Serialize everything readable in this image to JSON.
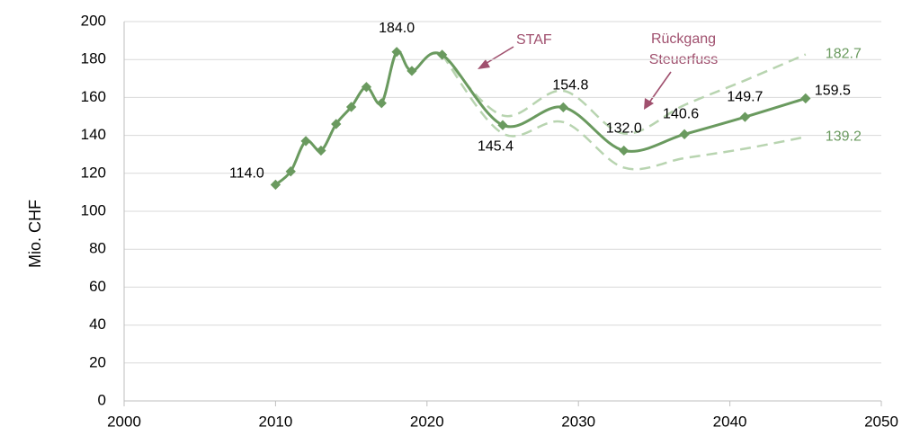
{
  "chart_data": {
    "type": "line",
    "y_label": "Mio. CHF",
    "x": [
      2010,
      2011,
      2012,
      2013,
      2014,
      2015,
      2016,
      2017,
      2018,
      2019,
      2021,
      2025,
      2029,
      2033,
      2037,
      2041,
      2045
    ],
    "series": [
      {
        "color": "#6a9a5f",
        "style": "solid",
        "markers": true,
        "values": [
          114,
          121,
          137,
          132,
          146,
          155,
          165.5,
          157,
          184,
          174,
          182.5,
          145.4,
          154.8,
          132,
          140.6,
          149.7,
          159.5
        ],
        "value_labels": [
          "114.0",
          null,
          null,
          null,
          null,
          null,
          null,
          null,
          "184.0",
          null,
          null,
          "145.4",
          "154.8",
          "132.0",
          "140.6",
          "149.7",
          "159.5"
        ]
      },
      {
        "color": "#b8d4b0",
        "style": "dashed",
        "markers": false,
        "values": [
          null,
          null,
          null,
          null,
          null,
          null,
          null,
          null,
          null,
          null,
          182.5,
          150.5,
          163.5,
          141,
          156,
          169,
          182.7
        ],
        "value_labels": [
          null,
          null,
          null,
          null,
          null,
          null,
          null,
          null,
          null,
          null,
          null,
          null,
          null,
          null,
          null,
          null,
          "182.7"
        ]
      },
      {
        "color": "#b8d4b0",
        "style": "dashed",
        "markers": false,
        "values": [
          null,
          null,
          null,
          null,
          null,
          null,
          null,
          null,
          null,
          null,
          182.5,
          141,
          147,
          123,
          128,
          133,
          139.2
        ],
        "value_labels": [
          null,
          null,
          null,
          null,
          null,
          null,
          null,
          null,
          null,
          null,
          null,
          null,
          null,
          null,
          null,
          null,
          "139.2"
        ]
      }
    ],
    "annotations": [
      "STAF",
      "Rückgang",
      "Steuerfuss"
    ],
    "xlim": [
      2000,
      2050
    ],
    "xticks": [
      2000,
      2010,
      2020,
      2030,
      2040,
      2050
    ],
    "ylim": [
      0,
      200
    ],
    "yticks": [
      0,
      20,
      40,
      60,
      80,
      100,
      120,
      140,
      160,
      180,
      200
    ],
    "grid": true
  }
}
